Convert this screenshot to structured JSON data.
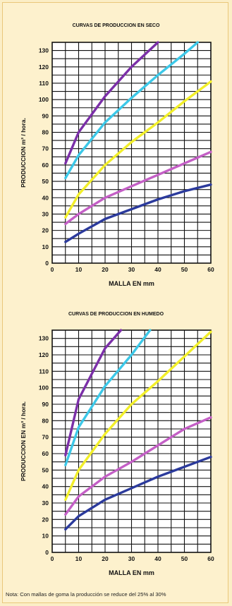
{
  "note": "Nota: Con mallas de goma la producción se reduce del 25% al 30%",
  "chart_data": [
    {
      "type": "line",
      "title": "CURVAS DE PRODUCCION EN SECO",
      "xlabel": "MALLA EN mm",
      "ylabel": "PRODUCCION m³ / hora.",
      "xlim": [
        0,
        60
      ],
      "ylim": [
        0,
        135
      ],
      "x_ticks": [
        0,
        10,
        20,
        30,
        40,
        50,
        60
      ],
      "y_ticks": [
        0,
        10,
        20,
        30,
        40,
        50,
        60,
        70,
        80,
        90,
        100,
        110,
        120,
        130
      ],
      "grid": true,
      "series": [
        {
          "color": "#7b2fa8",
          "x": [
            5,
            10,
            20,
            30,
            40
          ],
          "y": [
            61,
            80,
            102,
            120,
            135
          ]
        },
        {
          "color": "#3cc8e8",
          "x": [
            5,
            10,
            20,
            30,
            40,
            50,
            55
          ],
          "y": [
            52,
            66,
            86,
            101,
            115,
            128,
            135
          ]
        },
        {
          "color": "#f2ef2a",
          "x": [
            5,
            10,
            20,
            30,
            40,
            50,
            60
          ],
          "y": [
            28,
            42,
            60,
            74,
            86,
            99,
            111
          ]
        },
        {
          "color": "#c45fc6",
          "x": [
            5,
            10,
            20,
            30,
            40,
            50,
            60
          ],
          "y": [
            24,
            30,
            40,
            47,
            54,
            61,
            68
          ]
        },
        {
          "color": "#2b3a9c",
          "x": [
            5,
            10,
            20,
            30,
            40,
            50,
            60
          ],
          "y": [
            13,
            18,
            27,
            33,
            39,
            44,
            48
          ]
        }
      ]
    },
    {
      "type": "line",
      "title": "CURVAS DE PRODUCCION EN HUMEDO",
      "xlabel": "MALLA EN mm",
      "ylabel": "PRODUCCION EN m³ / hora.",
      "xlim": [
        0,
        60
      ],
      "ylim": [
        0,
        135
      ],
      "x_ticks": [
        0,
        10,
        20,
        30,
        40,
        50,
        60
      ],
      "y_ticks": [
        0,
        10,
        20,
        30,
        40,
        50,
        60,
        70,
        80,
        90,
        100,
        110,
        120,
        130
      ],
      "grid": true,
      "series": [
        {
          "color": "#7b2fa8",
          "x": [
            5,
            10,
            20,
            26
          ],
          "y": [
            59,
            93,
            124,
            135
          ]
        },
        {
          "color": "#3cc8e8",
          "x": [
            5,
            10,
            20,
            30,
            37
          ],
          "y": [
            53,
            76,
            101,
            120,
            135
          ]
        },
        {
          "color": "#f2ef2a",
          "x": [
            5,
            10,
            20,
            30,
            40,
            50,
            60
          ],
          "y": [
            32,
            50,
            72,
            90,
            104,
            119,
            134
          ]
        },
        {
          "color": "#c45fc6",
          "x": [
            5,
            10,
            20,
            30,
            40,
            50,
            60
          ],
          "y": [
            23,
            34,
            46,
            55,
            65,
            75,
            82
          ]
        },
        {
          "color": "#2b3a9c",
          "x": [
            5,
            10,
            20,
            30,
            40,
            50,
            60
          ],
          "y": [
            14,
            22,
            32,
            39,
            46,
            52,
            58
          ]
        }
      ]
    }
  ]
}
